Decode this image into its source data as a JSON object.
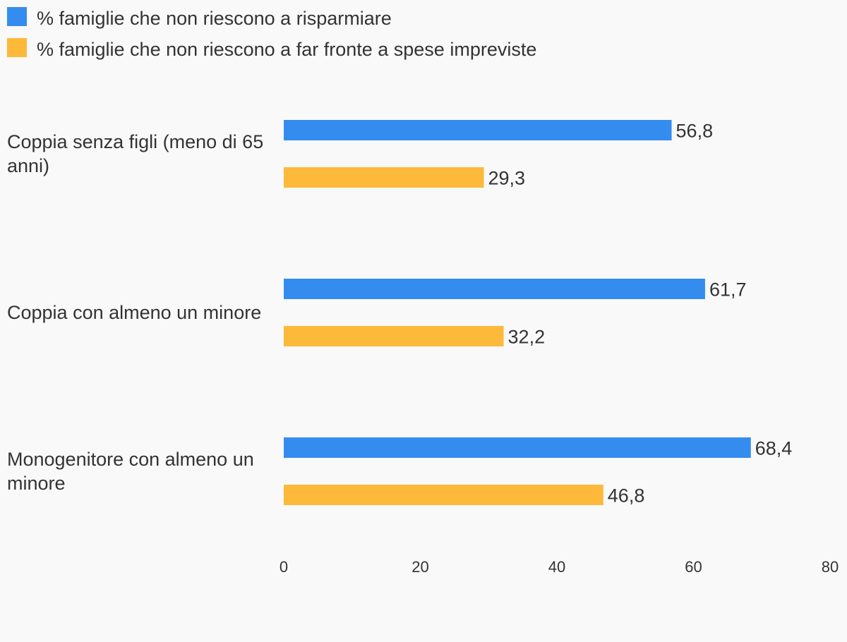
{
  "chart_data": {
    "type": "bar",
    "orientation": "horizontal",
    "categories": [
      "Coppia senza figli (meno di 65 anni)",
      "Coppia con almeno un minore",
      "Monogenitore con almeno un minore"
    ],
    "series": [
      {
        "name": "% famiglie che non riescono a risparmiare",
        "color": "#348cee",
        "values": [
          56.8,
          61.7,
          68.4
        ],
        "labels": [
          "56,8",
          "61,7",
          "68,4"
        ]
      },
      {
        "name": "% famiglie che non riescono a far fronte a spese impreviste",
        "color": "#fdb93a",
        "values": [
          29.3,
          32.2,
          46.8
        ],
        "labels": [
          "29,3",
          "32,2",
          "46,8"
        ]
      }
    ],
    "xlim": [
      0,
      80
    ],
    "xticks": [
      0,
      20,
      40,
      60,
      80
    ],
    "grid": false,
    "legend_position": "top-left"
  }
}
